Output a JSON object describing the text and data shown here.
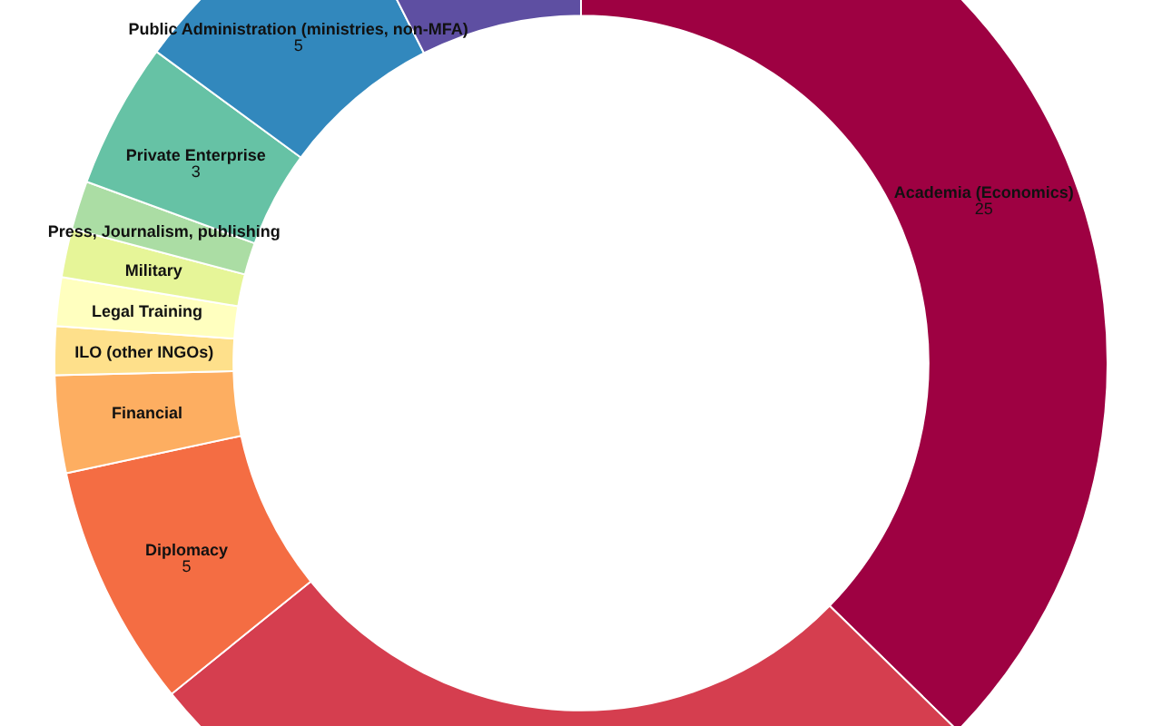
{
  "chart_data": {
    "type": "donut",
    "categories": [
      "Academia (Economics)",
      null,
      "Diplomacy",
      "Financial",
      "ILO (other INGOs)",
      "Legal Training",
      "Military",
      "Press, Journalism, publishing",
      "Private Enterprise",
      "Public Administration (ministries, non-MFA)",
      null
    ],
    "values": [
      25,
      18,
      5,
      2,
      1,
      1,
      1,
      1,
      3,
      5,
      5
    ],
    "value_labels": [
      "25",
      null,
      "5",
      null,
      null,
      null,
      null,
      null,
      "3",
      "5",
      null
    ],
    "colors": [
      "#9e0142",
      "#d53e4f",
      "#f46d43",
      "#fdae61",
      "#fee08b",
      "#ffffbf",
      "#e6f598",
      "#abdda4",
      "#66c2a5",
      "#3288bd",
      "#5e4fa2"
    ]
  }
}
